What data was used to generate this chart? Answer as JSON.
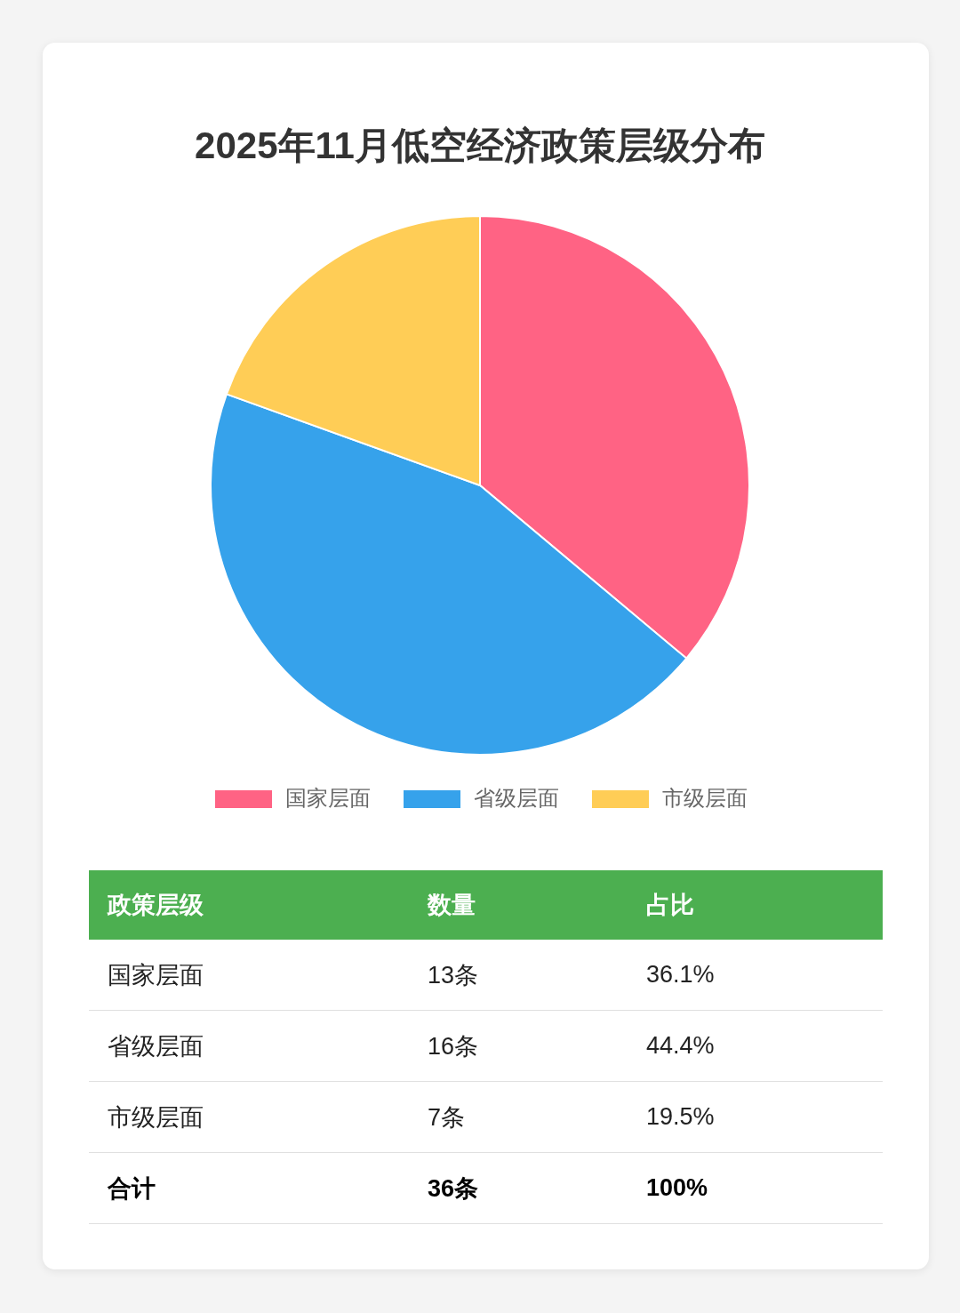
{
  "chart_data": {
    "type": "pie",
    "title": "2025年11月低空经济政策层级分布",
    "categories": [
      "国家层面",
      "省级层面",
      "市级层面"
    ],
    "values": [
      36.1,
      44.4,
      19.5
    ],
    "colors": [
      "#ff6384",
      "#36a2eb",
      "#ffcd56"
    ],
    "legend": "bottom",
    "annotations": [
      "政策层级",
      "数量",
      "占比",
      "13条",
      "36.1%",
      "16条",
      "44.4%",
      "7条",
      "19.5%",
      "合计",
      "36条",
      "100%"
    ]
  }
}
